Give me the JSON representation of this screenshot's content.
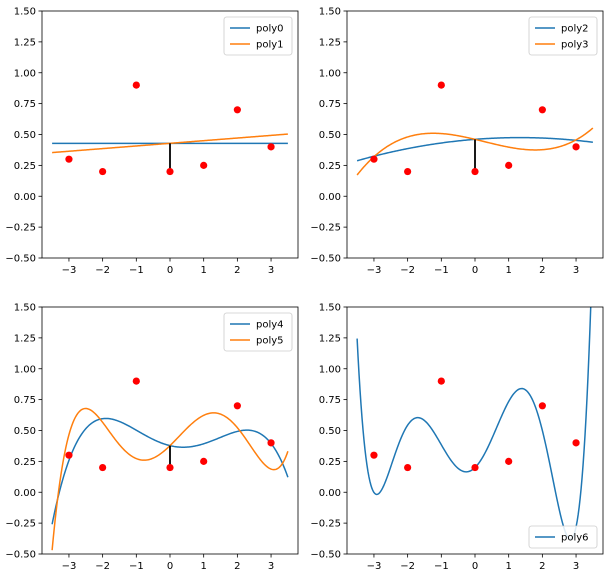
{
  "chart_data": [
    {
      "type": "line",
      "xlim": [
        -3.8,
        3.8
      ],
      "ylim": [
        -0.5,
        1.5
      ],
      "xticks": [
        -3,
        -2,
        -1,
        0,
        1,
        2,
        3
      ],
      "xtick_labels": [
        "−3",
        "−2",
        "−1",
        "0",
        "1",
        "2",
        "3"
      ],
      "yticks": [
        -0.5,
        -0.25,
        0,
        0.25,
        0.5,
        0.75,
        1.0,
        1.25,
        1.5
      ],
      "ytick_labels": [
        "−0.50",
        "−0.25",
        "0.00",
        "0.25",
        "0.50",
        "0.75",
        "1.00",
        "1.25",
        "1.50"
      ],
      "grid": false,
      "legend": "upper-right",
      "points": {
        "x": [
          -3,
          -2,
          -1,
          0,
          1,
          2,
          3
        ],
        "y": [
          0.3,
          0.2,
          0.9,
          0.2,
          0.25,
          0.7,
          0.4
        ],
        "color": "#ff0000"
      },
      "residual": {
        "x": 0,
        "from": 0.2,
        "to": 0.4286
      },
      "series": [
        {
          "name": "poly0",
          "color": "#1f77b4",
          "coeffs": [
            0.4286
          ]
        },
        {
          "name": "poly1",
          "color": "#ff7f0e",
          "coeffs": [
            0.4286,
            0.0214
          ]
        }
      ]
    },
    {
      "type": "line",
      "xlim": [
        -3.8,
        3.8
      ],
      "ylim": [
        -0.5,
        1.5
      ],
      "xticks": [
        -3,
        -2,
        -1,
        0,
        1,
        2,
        3
      ],
      "xtick_labels": [
        "−3",
        "−2",
        "−1",
        "0",
        "1",
        "2",
        "3"
      ],
      "yticks": [
        -0.5,
        -0.25,
        0,
        0.25,
        0.5,
        0.75,
        1.0,
        1.25,
        1.5
      ],
      "ytick_labels": [
        "−0.50",
        "−0.25",
        "0.00",
        "0.25",
        "0.50",
        "0.75",
        "1.00",
        "1.25",
        "1.50"
      ],
      "grid": false,
      "legend": "upper-right",
      "points": {
        "x": [
          -3,
          -2,
          -1,
          0,
          1,
          2,
          3
        ],
        "y": [
          0.3,
          0.2,
          0.9,
          0.2,
          0.25,
          0.7,
          0.4
        ],
        "color": "#ff0000"
      },
      "residual": {
        "x": 0,
        "from": 0.2,
        "to": 0.4607
      },
      "series": [
        {
          "name": "poly2",
          "color": "#1f77b4",
          "coeffs": [
            0.4607,
            0.0214,
            -0.00804
          ]
        },
        {
          "name": "poly3",
          "color": "#ff7f0e",
          "coeffs": [
            0.4607,
            -0.0647,
            -0.00804,
            0.00972
          ]
        }
      ]
    },
    {
      "type": "line",
      "xlim": [
        -3.8,
        3.8
      ],
      "ylim": [
        -0.5,
        1.5
      ],
      "xticks": [
        -3,
        -2,
        -1,
        0,
        1,
        2,
        3
      ],
      "xtick_labels": [
        "−3",
        "−2",
        "−1",
        "0",
        "1",
        "2",
        "3"
      ],
      "yticks": [
        -0.5,
        -0.25,
        0,
        0.25,
        0.5,
        0.75,
        1.0,
        1.25,
        1.5
      ],
      "ytick_labels": [
        "−0.50",
        "−0.25",
        "0.00",
        "0.25",
        "0.50",
        "0.75",
        "1.00",
        "1.25",
        "1.50"
      ],
      "grid": false,
      "legend": "upper-right",
      "points": {
        "x": [
          -3,
          -2,
          -1,
          0,
          1,
          2,
          3
        ],
        "y": [
          0.3,
          0.2,
          0.9,
          0.2,
          0.25,
          0.7,
          0.4
        ],
        "color": "#ff0000"
      },
      "residual": {
        "x": 0,
        "from": 0.2,
        "to": 0.3774
      },
      "series": [
        {
          "name": "poly4",
          "color": "#1f77b4",
          "coeffs": [
            0.3774,
            -0.0647,
            0.0796,
            0.00972,
            -0.00947
          ]
        },
        {
          "name": "poly5",
          "color": "#ff7f0e",
          "coeffs": [
            0.3774,
            0.2646,
            0.0796,
            -0.0963,
            -0.00947,
            0.00686
          ]
        }
      ]
    },
    {
      "type": "line",
      "xlim": [
        -3.8,
        3.8
      ],
      "ylim": [
        -0.5,
        1.5
      ],
      "xticks": [
        -3,
        -2,
        -1,
        0,
        1,
        2,
        3
      ],
      "xtick_labels": [
        "−3",
        "−2",
        "−1",
        "0",
        "1",
        "2",
        "3"
      ],
      "yticks": [
        -0.5,
        -0.25,
        0,
        0.25,
        0.5,
        0.75,
        1.0,
        1.25,
        1.5
      ],
      "ytick_labels": [
        "−0.50",
        "−0.25",
        "0.00",
        "0.25",
        "0.50",
        "0.75",
        "1.00",
        "1.25",
        "1.50"
      ],
      "grid": false,
      "legend": "lower-right",
      "points": {
        "x": [
          -3,
          -2,
          -1,
          0,
          1,
          2,
          3
        ],
        "y": [
          0.3,
          0.2,
          0.9,
          0.2,
          0.25,
          0.7,
          0.4
        ],
        "color": "#ff0000"
      },
      "series": [
        {
          "name": "poly6",
          "color": "#1f77b4",
          "coeffs": [
            0.2,
            0.2646,
            0.4875,
            -0.0963,
            -0.1365,
            0.00686,
            0.00868
          ]
        }
      ]
    }
  ]
}
